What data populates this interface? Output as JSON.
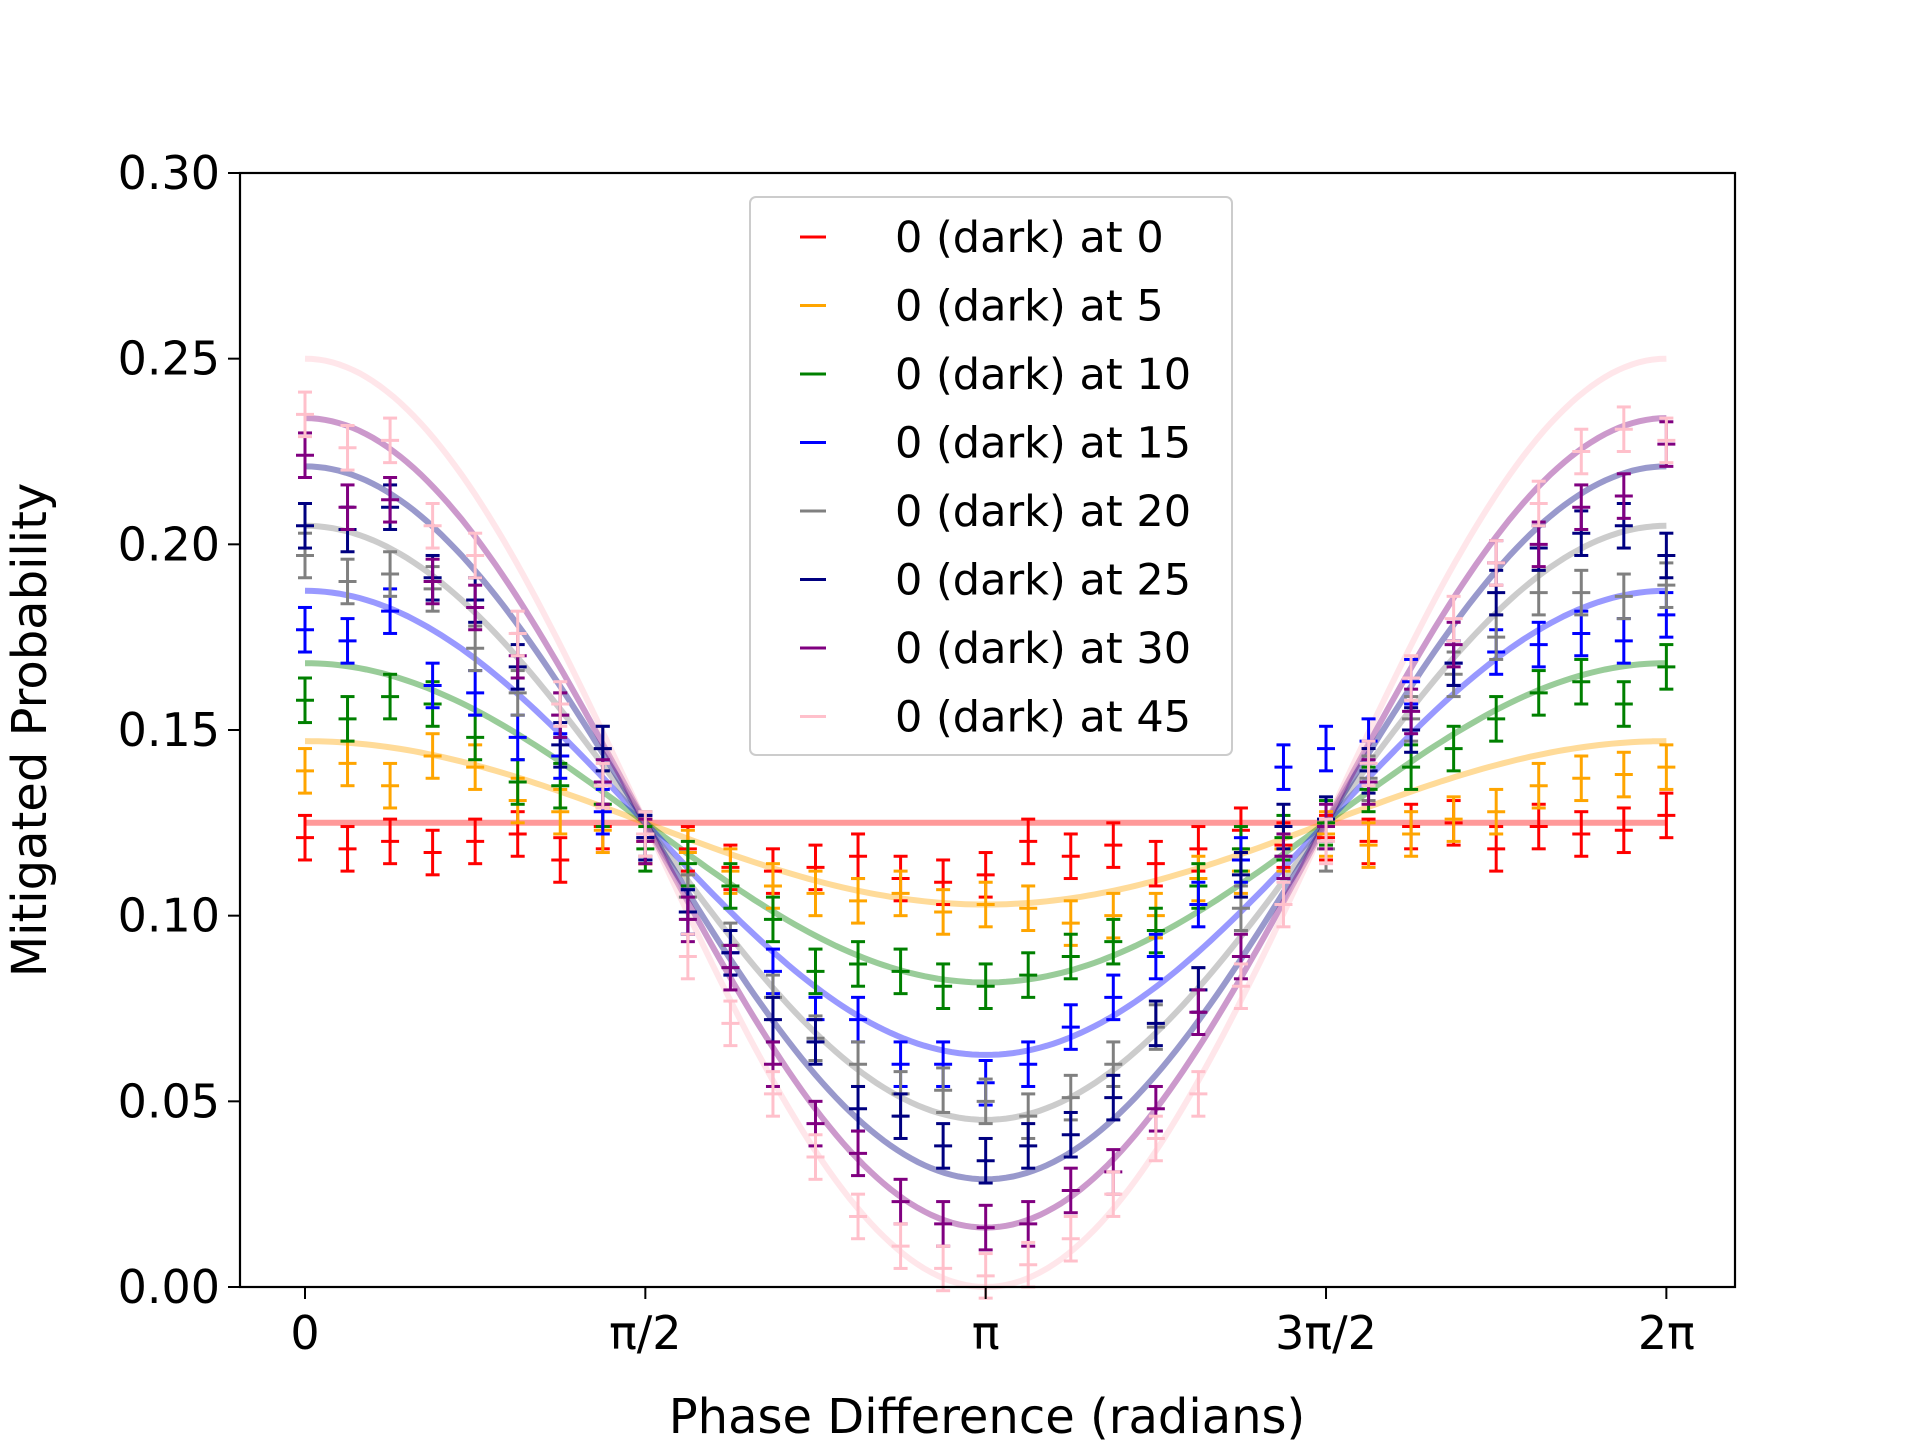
{
  "chart_data": {
    "type": "line",
    "title": "",
    "xlabel": "Phase Difference (radians)",
    "ylabel": "Mitigated Probability",
    "xlim": [
      -0.3,
      6.6
    ],
    "ylim": [
      0,
      0.3
    ],
    "x_ticks": [
      {
        "value": 0,
        "label": "0"
      },
      {
        "value": 1.5708,
        "label": "π/2"
      },
      {
        "value": 3.1416,
        "label": "π"
      },
      {
        "value": 4.7124,
        "label": "3π/2"
      },
      {
        "value": 6.2832,
        "label": "2π"
      }
    ],
    "y_ticks": [
      {
        "value": 0.0,
        "label": "0.00"
      },
      {
        "value": 0.05,
        "label": "0.05"
      },
      {
        "value": 0.1,
        "label": "0.10"
      },
      {
        "value": 0.15,
        "label": "0.15"
      },
      {
        "value": 0.2,
        "label": "0.20"
      },
      {
        "value": 0.25,
        "label": "0.25"
      },
      {
        "value": 0.3,
        "label": "0.30"
      }
    ],
    "grid": false,
    "legend_position": "top-center",
    "error_bar": 0.006,
    "x": [
      0,
      0.1963,
      0.3927,
      0.589,
      0.7854,
      0.9817,
      1.1781,
      1.3744,
      1.5708,
      1.7671,
      1.9635,
      2.1598,
      2.3562,
      2.5525,
      2.7489,
      2.9452,
      3.1416,
      3.3379,
      3.5343,
      3.7306,
      3.927,
      4.1233,
      4.3197,
      4.516,
      4.7124,
      4.9087,
      5.1051,
      5.3014,
      5.4978,
      5.6941,
      5.8905,
      6.0868,
      6.2832
    ],
    "series": [
      {
        "name": "0 (dark) at 0",
        "color": "#ff0000",
        "fit_mean": 0.125,
        "fit_amp": 0.0,
        "values": [
          0.121,
          0.118,
          0.12,
          0.117,
          0.12,
          0.122,
          0.115,
          0.124,
          0.12,
          0.118,
          0.113,
          0.112,
          0.113,
          0.116,
          0.11,
          0.109,
          0.111,
          0.12,
          0.116,
          0.119,
          0.114,
          0.118,
          0.123,
          0.119,
          0.121,
          0.12,
          0.124,
          0.125,
          0.118,
          0.124,
          0.122,
          0.123,
          0.127
        ]
      },
      {
        "name": "0 (dark) at 5",
        "color": "#ffa500",
        "fit_mean": 0.125,
        "fit_amp": 0.022,
        "values": [
          0.139,
          0.141,
          0.135,
          0.143,
          0.14,
          0.131,
          0.128,
          0.123,
          0.12,
          0.117,
          0.112,
          0.108,
          0.106,
          0.104,
          0.106,
          0.101,
          0.103,
          0.102,
          0.098,
          0.1,
          0.1,
          0.11,
          0.112,
          0.118,
          0.122,
          0.119,
          0.122,
          0.126,
          0.128,
          0.135,
          0.137,
          0.138,
          0.14
        ]
      },
      {
        "name": "0 (dark) at 10",
        "color": "#008000",
        "fit_mean": 0.125,
        "fit_amp": 0.043,
        "values": [
          0.158,
          0.153,
          0.159,
          0.157,
          0.148,
          0.136,
          0.135,
          0.13,
          0.118,
          0.114,
          0.108,
          0.099,
          0.085,
          0.087,
          0.085,
          0.081,
          0.081,
          0.084,
          0.089,
          0.093,
          0.096,
          0.108,
          0.118,
          0.121,
          0.125,
          0.134,
          0.14,
          0.145,
          0.153,
          0.16,
          0.163,
          0.157,
          0.167
        ]
      },
      {
        "name": "0 (dark) at 15",
        "color": "#0000ff",
        "fit_mean": 0.125,
        "fit_amp": 0.0625,
        "values": [
          0.177,
          0.174,
          0.182,
          0.162,
          0.16,
          0.148,
          0.143,
          0.128,
          0.121,
          0.101,
          0.09,
          0.085,
          0.072,
          0.072,
          0.06,
          0.06,
          0.055,
          0.06,
          0.07,
          0.078,
          0.089,
          0.103,
          0.115,
          0.14,
          0.145,
          0.147,
          0.163,
          0.168,
          0.171,
          0.173,
          0.176,
          0.174,
          0.181
        ]
      },
      {
        "name": "0 (dark) at 20",
        "color": "#808080",
        "fit_mean": 0.125,
        "fit_amp": 0.08,
        "values": [
          0.197,
          0.19,
          0.192,
          0.188,
          0.172,
          0.16,
          0.154,
          0.145,
          0.122,
          0.105,
          0.092,
          0.078,
          0.067,
          0.06,
          0.052,
          0.053,
          0.05,
          0.046,
          0.051,
          0.06,
          0.07,
          0.08,
          0.102,
          0.116,
          0.118,
          0.137,
          0.153,
          0.165,
          0.175,
          0.187,
          0.187,
          0.186,
          0.189
        ]
      },
      {
        "name": "0 (dark) at 25",
        "color": "#000080",
        "fit_mean": 0.125,
        "fit_amp": 0.096,
        "values": [
          0.205,
          0.204,
          0.21,
          0.191,
          0.185,
          0.167,
          0.146,
          0.145,
          0.121,
          0.101,
          0.09,
          0.072,
          0.066,
          0.048,
          0.046,
          0.038,
          0.034,
          0.038,
          0.041,
          0.051,
          0.071,
          0.08,
          0.111,
          0.124,
          0.126,
          0.139,
          0.15,
          0.168,
          0.187,
          0.199,
          0.203,
          0.205,
          0.197
        ]
      },
      {
        "name": "0 (dark) at 30",
        "color": "#800080",
        "fit_mean": 0.125,
        "fit_amp": 0.109,
        "values": [
          0.224,
          0.21,
          0.212,
          0.19,
          0.183,
          0.17,
          0.154,
          0.136,
          0.12,
          0.099,
          0.086,
          0.06,
          0.044,
          0.036,
          0.023,
          0.017,
          0.016,
          0.017,
          0.026,
          0.031,
          0.048,
          0.074,
          0.089,
          0.116,
          0.124,
          0.136,
          0.155,
          0.173,
          0.195,
          0.2,
          0.21,
          0.213,
          0.227
        ]
      },
      {
        "name": "0 (dark) at 45",
        "color": "#ffc0cb",
        "fit_mean": 0.125,
        "fit_amp": 0.125,
        "values": [
          0.235,
          0.226,
          0.228,
          0.205,
          0.197,
          0.176,
          0.157,
          0.135,
          0.122,
          0.089,
          0.071,
          0.052,
          0.035,
          0.019,
          0.011,
          0.005,
          0.003,
          0.006,
          0.013,
          0.025,
          0.04,
          0.052,
          0.081,
          0.103,
          0.12,
          0.141,
          0.164,
          0.18,
          0.195,
          0.211,
          0.225,
          0.231,
          0.228
        ]
      }
    ]
  }
}
